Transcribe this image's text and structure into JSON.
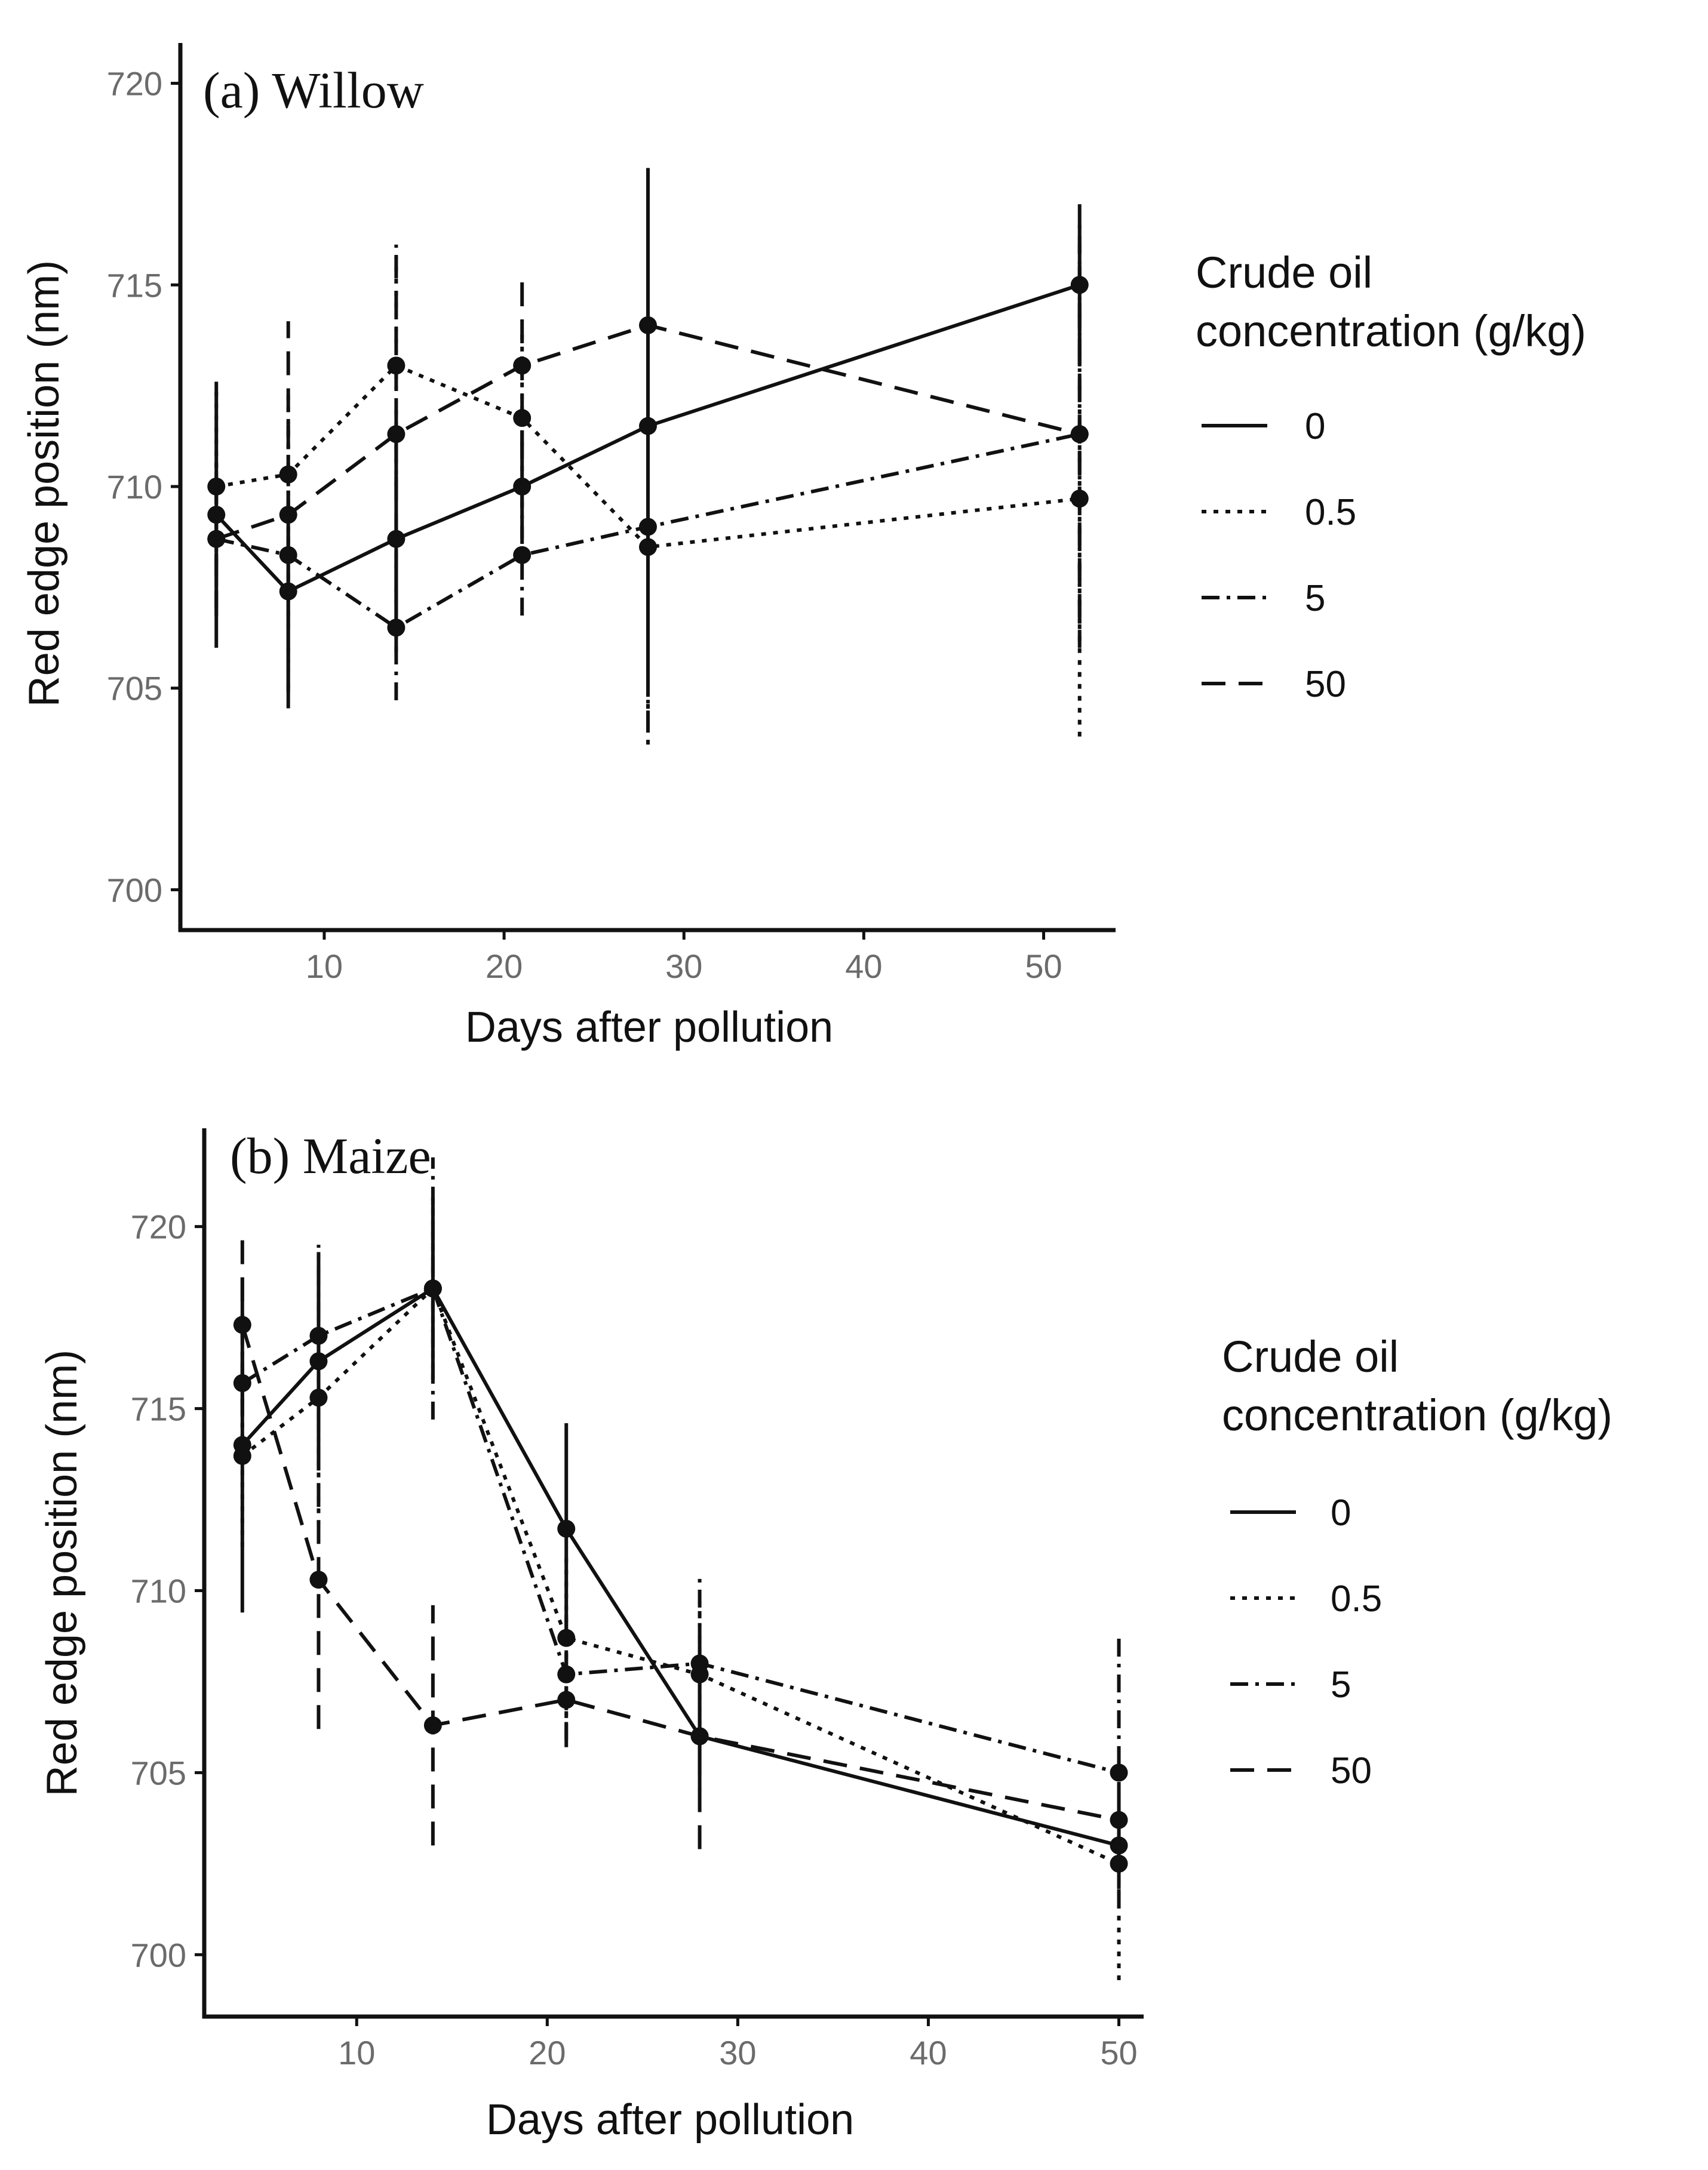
{
  "linetypes": [
    "solid",
    "dotted",
    "dashdot",
    "longdash"
  ],
  "chart_data": [
    {
      "type": "line",
      "title": "(a) Willow",
      "xlabel": "Days after pollution",
      "ylabel": "Red edge position (nm)",
      "xlim": [
        2,
        54
      ],
      "ylim": [
        699,
        721
      ],
      "xticks": [
        10,
        20,
        30,
        40,
        50
      ],
      "yticks": [
        700,
        705,
        710,
        715,
        720
      ],
      "legend_title_line1": "Crude oil",
      "legend_title_line2": "concentration (g/kg)",
      "x": [
        4,
        8,
        14,
        21,
        28,
        52
      ],
      "series": [
        {
          "name": "0",
          "values": [
            709.3,
            707.4,
            708.7,
            710.0,
            711.5,
            715.0
          ],
          "error": [
            3.3,
            2.5,
            2.8,
            1.3,
            6.4,
            2.0
          ]
        },
        {
          "name": "0.5",
          "values": [
            710.0,
            710.3,
            713.0,
            711.7,
            708.5,
            709.7
          ],
          "error": [
            2.5,
            2.0,
            3.0,
            2.2,
            4.9,
            5.9
          ]
        },
        {
          "name": "5",
          "values": [
            708.7,
            708.3,
            706.5,
            708.3,
            709.0,
            711.3
          ],
          "error": [
            1.7,
            3.3,
            1.8,
            1.5,
            5.0,
            5.3
          ]
        },
        {
          "name": "50",
          "values": [
            708.7,
            709.3,
            711.3,
            713.0,
            714.0,
            711.3
          ],
          "error": [
            1.9,
            4.8,
            4.4,
            2.2,
            3.6,
            4.7
          ]
        }
      ]
    },
    {
      "type": "line",
      "title": "(b) Maize",
      "xlabel": "Days after pollution",
      "ylabel": "Red edge position (nm)",
      "xlim": [
        2,
        51.3
      ],
      "ylim": [
        698.3,
        722.7
      ],
      "xticks": [
        10,
        20,
        30,
        40,
        50
      ],
      "yticks": [
        700,
        705,
        710,
        715,
        720
      ],
      "legend_title_line1": "Crude oil",
      "legend_title_line2": "concentration (g/kg)",
      "x": [
        4,
        8,
        14,
        21,
        28,
        50
      ],
      "series": [
        {
          "name": "0",
          "values": [
            714.0,
            716.3,
            718.3,
            711.7,
            706.0,
            703.0
          ],
          "error": [
            4.6,
            3.0,
            2.5,
            2.9,
            1.5,
            1.2
          ]
        },
        {
          "name": "0.5",
          "values": [
            713.7,
            715.3,
            718.3,
            708.7,
            707.7,
            702.5
          ],
          "error": [
            2.5,
            3.5,
            2.5,
            2.2,
            2.0,
            3.2
          ]
        },
        {
          "name": "5",
          "values": [
            715.7,
            717.0,
            718.3,
            707.7,
            708.0,
            705.0
          ],
          "error": [
            1.9,
            2.5,
            3.6,
            1.8,
            2.4,
            3.7
          ]
        },
        {
          "name": "50",
          "values": [
            717.3,
            710.3,
            706.3,
            707.0,
            706.0,
            703.7
          ],
          "error": [
            2.4,
            4.1,
            3.3,
            1.3,
            3.1,
            0.8
          ]
        }
      ]
    }
  ]
}
